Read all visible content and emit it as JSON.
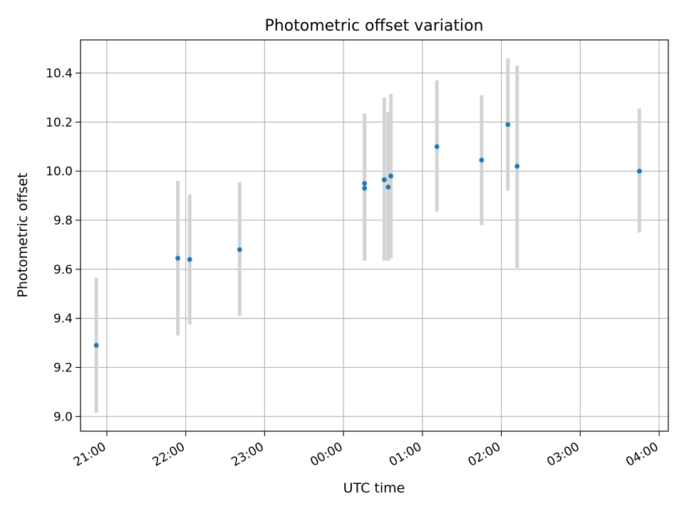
{
  "chart_data": {
    "type": "scatter",
    "title": "Photometric offset variation",
    "xlabel": "UTC time",
    "ylabel": "Photometric offset",
    "x_axis_kind": "time",
    "grid": true,
    "xlim": [
      "20:40",
      "04:07"
    ],
    "ylim": [
      8.94,
      10.535
    ],
    "x_ticks": [
      "21:00",
      "22:00",
      "23:00",
      "00:00",
      "01:00",
      "02:00",
      "03:00",
      "04:00"
    ],
    "y_ticks": [
      "9.0",
      "9.2",
      "9.4",
      "9.6",
      "9.8",
      "10.0",
      "10.2",
      "10.4"
    ],
    "colors": {
      "point": "#1f77b4",
      "errorbar": "#d3d3d3",
      "grid": "#b0b0b0",
      "axes": "#000000"
    },
    "points": [
      {
        "x": "20:52",
        "y": 9.29,
        "ylo": 9.015,
        "yhi": 9.565
      },
      {
        "x": "21:54",
        "y": 9.645,
        "ylo": 9.33,
        "yhi": 9.96
      },
      {
        "x": "22:03",
        "y": 9.64,
        "ylo": 9.375,
        "yhi": 9.905
      },
      {
        "x": "22:41",
        "y": 9.68,
        "ylo": 9.41,
        "yhi": 9.955
      },
      {
        "x": "00:16",
        "y": 9.95,
        "ylo": 9.635,
        "yhi": 10.235
      },
      {
        "x": "00:16",
        "y": 9.93,
        "ylo": 9.64,
        "yhi": 10.22
      },
      {
        "x": "00:31",
        "y": 9.965,
        "ylo": 9.635,
        "yhi": 10.3
      },
      {
        "x": "00:34",
        "y": 9.935,
        "ylo": 9.635,
        "yhi": 10.24
      },
      {
        "x": "00:36",
        "y": 9.98,
        "ylo": 9.645,
        "yhi": 10.315
      },
      {
        "x": "01:11",
        "y": 10.1,
        "ylo": 9.835,
        "yhi": 10.37
      },
      {
        "x": "01:45",
        "y": 10.045,
        "ylo": 9.78,
        "yhi": 10.31
      },
      {
        "x": "02:05",
        "y": 10.19,
        "ylo": 9.92,
        "yhi": 10.46
      },
      {
        "x": "02:12",
        "y": 10.02,
        "ylo": 9.605,
        "yhi": 10.43
      },
      {
        "x": "03:45",
        "y": 10.0,
        "ylo": 9.75,
        "yhi": 10.255
      }
    ]
  }
}
